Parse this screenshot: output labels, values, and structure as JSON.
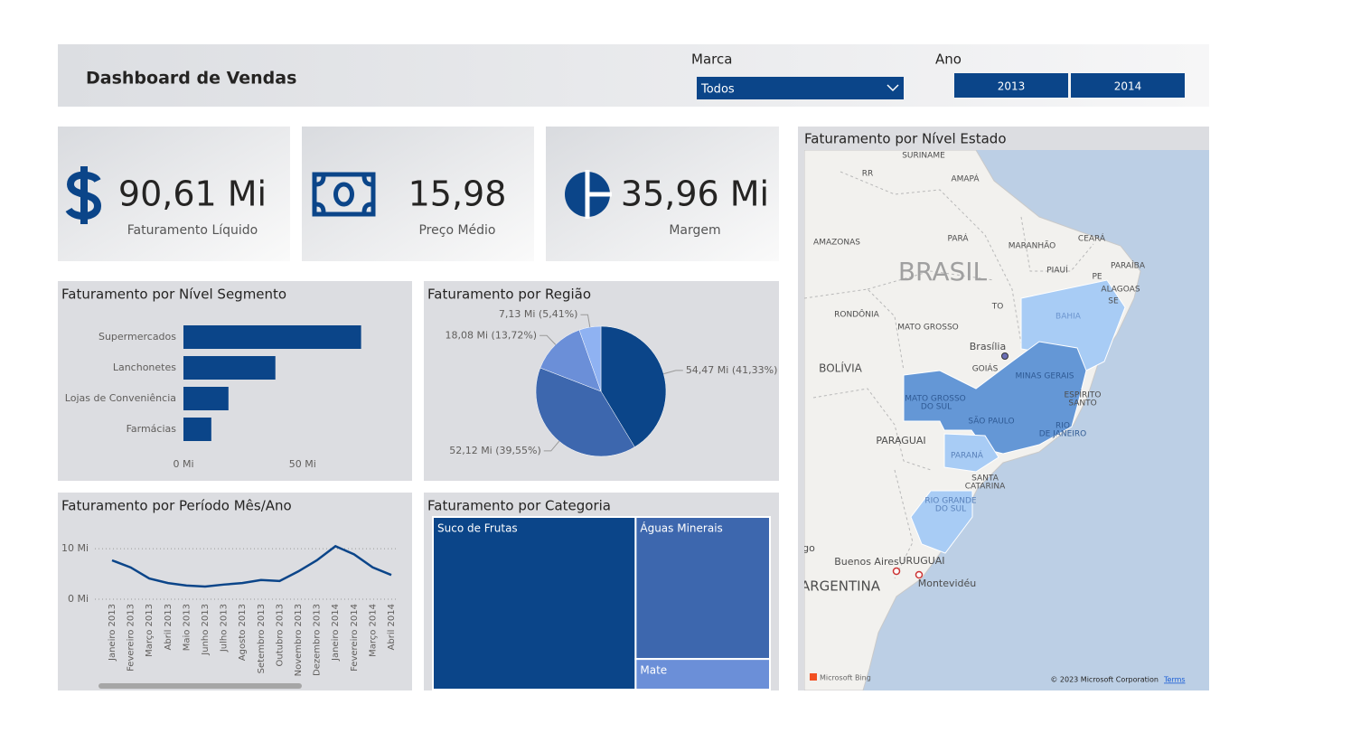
{
  "header": {
    "title": "Dashboard de Vendas"
  },
  "filters": {
    "brand_label": "Marca",
    "brand_value": "Todos",
    "year_label": "Ano",
    "years": [
      "2013",
      "2014"
    ]
  },
  "kpis": [
    {
      "value": "90,61 Mi",
      "label": "Faturamento Líquido"
    },
    {
      "value": "15,98",
      "label": "Preço Médio"
    },
    {
      "value": "35,96 Mi",
      "label": "Margem"
    }
  ],
  "chart_data": [
    {
      "type": "bar",
      "orientation": "horizontal",
      "title": "Faturamento por Nível Segmento",
      "categories": [
        "Supermercados",
        "Lanchonetes",
        "Lojas de Conveniência",
        "Farmácias"
      ],
      "values": [
        74.6,
        38.6,
        18.9,
        11.7
      ],
      "color": "#0b4589",
      "xlim": [
        0,
        85
      ],
      "xticks": [
        {
          "value": 0,
          "label": "0 Mi"
        },
        {
          "value": 50,
          "label": "50 Mi"
        }
      ]
    },
    {
      "type": "pie",
      "title": "Faturamento por Região",
      "values": [
        54.47,
        52.12,
        18.08,
        7.13
      ],
      "value_labels": [
        "54,47 Mi (41,33%)",
        "52,12 Mi (39,55%)",
        "18,08 Mi (13,72%)",
        "7,13 Mi (5,41%)"
      ],
      "colors": [
        "#0b4589",
        "#3d67ae",
        "#6b8fd8",
        "#8fb2f2"
      ]
    },
    {
      "type": "line",
      "title": "Faturamento por Período Mês/Ano",
      "categories": [
        "Janeiro 2013",
        "Fevereiro 2013",
        "Março 2013",
        "Abril 2013",
        "Maio 2013",
        "Junho 2013",
        "Julho 2013",
        "Agosto 2013",
        "Setembro 2013",
        "Outubro 2013",
        "Novembro 2013",
        "Dezembro 2013",
        "Janeiro 2014",
        "Fevereiro 2014",
        "Março 2014",
        "Abril 2014"
      ],
      "values": [
        7.7,
        6.3,
        4.1,
        3.2,
        2.7,
        2.5,
        2.9,
        3.2,
        3.8,
        3.6,
        5.5,
        7.7,
        10.5,
        8.9,
        6.3,
        4.8
      ],
      "color": "#0b4589",
      "ylim": [
        0,
        12
      ],
      "yticks": [
        {
          "value": 0,
          "label": "0 Mi"
        },
        {
          "value": 10,
          "label": "10 Mi"
        }
      ],
      "grid": true
    },
    {
      "type": "treemap",
      "title": "Faturamento por Categoria",
      "categories": [
        "Suco de Frutas",
        "Águas Minerais",
        "Mate"
      ],
      "values": [
        54.5,
        29.7,
        6.4
      ],
      "colors": [
        "#0b4589",
        "#3d67ae",
        "#6b8fd8"
      ]
    }
  ],
  "map": {
    "title": "Faturamento por Nível Estado",
    "labels": [
      "SURINAME",
      "RR",
      "AMAPÁ",
      "AMAZONAS",
      "PARÁ",
      "MARANHÃO",
      "CEARÁ",
      "BRASIL",
      "PIAUÍ",
      "PARAÍBA",
      "PE",
      "ALAGOAS",
      "SE",
      "TO",
      "BAHIA",
      "RONDÔNIA",
      "MATO GROSSO",
      "Brasília",
      "GOIÁS",
      "MINAS GERAIS",
      "BOLÍVIA",
      "MATO GROSSO",
      "DO SUL",
      "ESPÍRITO",
      "SANTO",
      "SÃO PAULO",
      "RIO",
      "DE JANEIRO",
      "PARAGUAI",
      "PARANÁ",
      "SANTA",
      "CATARINA",
      "RIO GRANDE",
      "DO SUL",
      "go",
      "Buenos Aires",
      "URUGUAI",
      "Montevidéu",
      "ARGENTINA"
    ],
    "provider": "Microsoft Bing",
    "copyright": "© 2023 Microsoft Corporation",
    "terms": "Terms"
  }
}
